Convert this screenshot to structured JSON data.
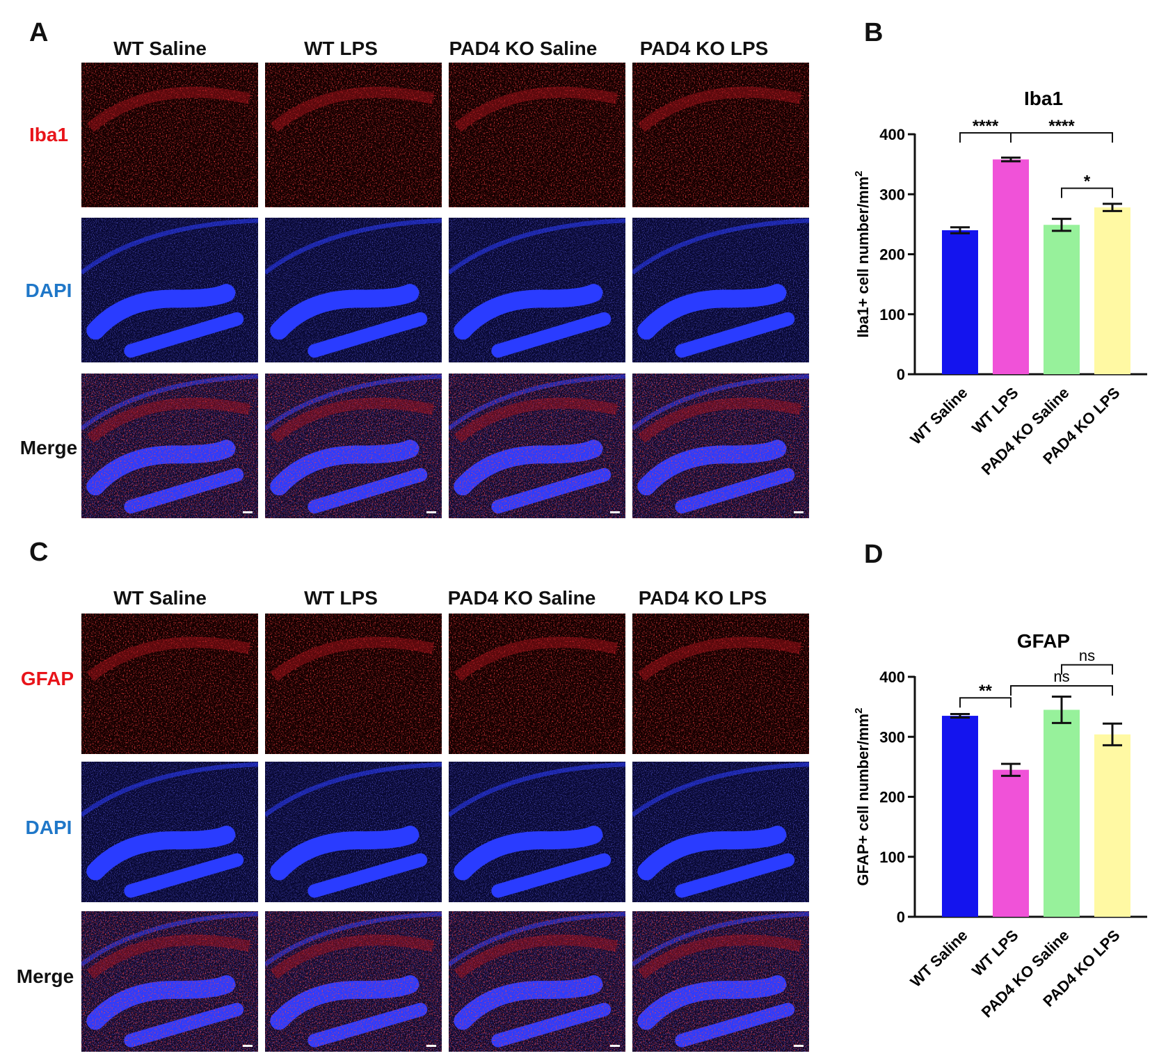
{
  "panels": {
    "a": "A",
    "b": "B",
    "c": "C",
    "d": "D"
  },
  "groups": [
    "WT Saline",
    "WT LPS",
    "PAD4 KO Saline",
    "PAD4 KO LPS"
  ],
  "rows_a": [
    "Iba1",
    "DAPI",
    "Merge"
  ],
  "rows_c": [
    "GFAP",
    "DAPI",
    "Merge"
  ],
  "colors": {
    "marker_red": "#e8141a",
    "dapi_blue": "#1f77c8",
    "bar_wt_saline": "#1414ee",
    "bar_wt_lps": "#f052d8",
    "bar_ko_saline": "#97f19b",
    "bar_ko_lps": "#fff9a3"
  },
  "chart_data": [
    {
      "type": "bar",
      "title": "Iba1",
      "ylabel": "Iba1+ cell number/mm",
      "ylabel_sup": "2",
      "xlabel": "",
      "categories": [
        "WT Saline",
        "WT LPS",
        "PAD4 KO Saline",
        "PAD4 KO LPS"
      ],
      "values": [
        240,
        358,
        249,
        278
      ],
      "errors": [
        5,
        3,
        10,
        6
      ],
      "ylim": [
        0,
        400
      ],
      "yticks": [
        "0",
        "100",
        "200",
        "300",
        "400"
      ],
      "significance": [
        {
          "from": 0,
          "to": 1,
          "label": "****"
        },
        {
          "from": 1,
          "to": 3,
          "label": "****"
        },
        {
          "from": 2,
          "to": 3,
          "label": "*"
        }
      ]
    },
    {
      "type": "bar",
      "title": "GFAP",
      "ylabel": "GFAP+ cell number/mm",
      "ylabel_sup": "2",
      "xlabel": "",
      "categories": [
        "WT Saline",
        "WT LPS",
        "PAD4 KO Saline",
        "PAD4 KO LPS"
      ],
      "values": [
        335,
        245,
        345,
        304
      ],
      "errors": [
        3,
        10,
        22,
        18
      ],
      "ylim": [
        0,
        400
      ],
      "yticks": [
        "0",
        "100",
        "200",
        "300",
        "400"
      ],
      "significance": [
        {
          "from": 0,
          "to": 1,
          "label": "**"
        },
        {
          "from": 1,
          "to": 3,
          "label": "ns"
        },
        {
          "from": 2,
          "to": 3,
          "label": "ns"
        }
      ]
    }
  ]
}
